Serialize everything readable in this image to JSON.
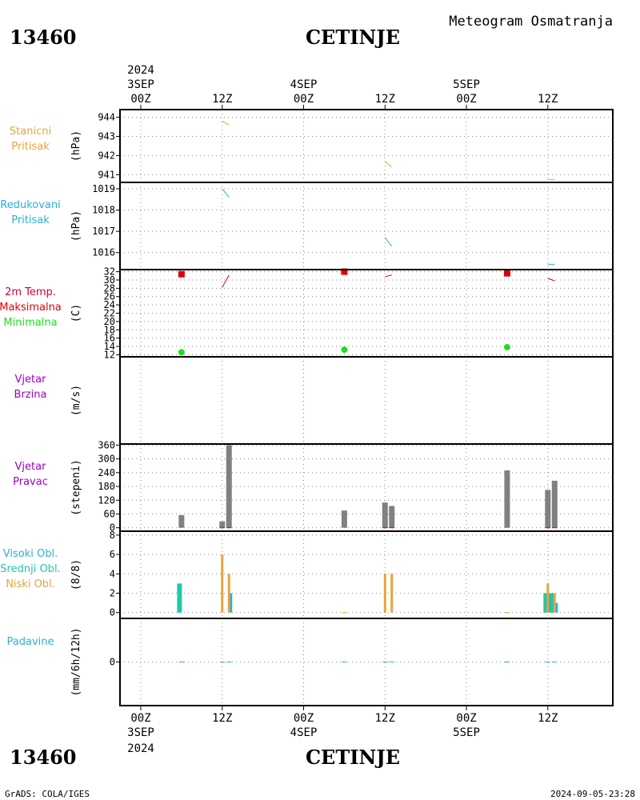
{
  "header": {
    "station_id": "13460",
    "station_name": "CETINJE",
    "chart_title": "Meteogram Osmatranja"
  },
  "time_axis": {
    "top_year": "2024",
    "bottom_year": "2024",
    "ticks": [
      {
        "hour": 0,
        "label": "00Z",
        "date": "3SEP"
      },
      {
        "hour": 12,
        "label": "12Z",
        "date": ""
      },
      {
        "hour": 24,
        "label": "00Z",
        "date": "4SEP"
      },
      {
        "hour": 36,
        "label": "12Z",
        "date": ""
      },
      {
        "hour": 48,
        "label": "00Z",
        "date": "5SEP"
      },
      {
        "hour": 60,
        "label": "12Z",
        "date": ""
      }
    ]
  },
  "footer": {
    "credit": "GrADS: COLA/IGES",
    "timestamp": "2024-09-05-23:28"
  },
  "colors": {
    "orange": "#e8a33c",
    "blue": "#2ab0d6",
    "red": "#e00000",
    "green": "#22dd22",
    "crimson": "#cc0044",
    "purple": "#a000c0",
    "teal": "#20c8a8",
    "gray": "#808080",
    "grid": "#888888"
  },
  "chart_data": [
    {
      "type": "line",
      "panel": "station_pressure",
      "labels": [
        "Stanicni",
        "Pritisak"
      ],
      "label_color": "orange",
      "unit": "(hPa)",
      "yticks": [
        941,
        942,
        943,
        944
      ],
      "ylim": [
        940.6,
        944.4
      ],
      "segments": [
        {
          "x": [
            12,
            13
          ],
          "y": [
            943.8,
            943.6
          ],
          "color": "orange"
        },
        {
          "x": [
            36,
            37
          ],
          "y": [
            941.7,
            941.4
          ],
          "color": "orange"
        },
        {
          "x": [
            60,
            61
          ],
          "y": [
            940.75,
            940.75
          ],
          "color": "orange"
        }
      ]
    },
    {
      "type": "line",
      "panel": "reduced_pressure",
      "labels": [
        "Redukovani",
        "Pritisak"
      ],
      "label_color": "blue",
      "unit": "(hPa)",
      "yticks": [
        1016,
        1017,
        1018,
        1019
      ],
      "ylim": [
        1015.2,
        1019.3
      ],
      "segments": [
        {
          "x": [
            12,
            13
          ],
          "y": [
            1019.0,
            1018.6
          ],
          "color": "blue"
        },
        {
          "x": [
            36,
            37
          ],
          "y": [
            1016.7,
            1016.3
          ],
          "color": "blue"
        },
        {
          "x": [
            60,
            61
          ],
          "y": [
            1015.45,
            1015.45
          ],
          "color": "blue"
        }
      ]
    },
    {
      "type": "line",
      "panel": "temperature",
      "labels": [
        "2m Temp.",
        "Maksimalna",
        "Minimalna"
      ],
      "label_colors": [
        "crimson",
        "red",
        "green"
      ],
      "unit": "(C)",
      "yticks": [
        12,
        14,
        16,
        18,
        20,
        22,
        24,
        26,
        28,
        30,
        32
      ],
      "ylim": [
        11.5,
        32.5
      ],
      "max_points": {
        "x": [
          6,
          30,
          54
        ],
        "y": [
          31.4,
          32.0,
          31.6
        ]
      },
      "min_points": {
        "x": [
          6,
          30,
          54
        ],
        "y": [
          12.6,
          13.2,
          13.8
        ]
      },
      "segments": [
        {
          "x": [
            12,
            13
          ],
          "y": [
            28.2,
            31.2
          ],
          "color": "crimson"
        },
        {
          "x": [
            36,
            37
          ],
          "y": [
            30.8,
            31.2
          ],
          "color": "crimson"
        },
        {
          "x": [
            60,
            61
          ],
          "y": [
            30.4,
            29.8
          ],
          "color": "crimson"
        }
      ]
    },
    {
      "type": "line",
      "panel": "wind_speed",
      "labels": [
        "Vjetar",
        "Brzina"
      ],
      "label_color": "purple",
      "unit": "(m/s)",
      "yticks": [],
      "ylim": [
        0,
        1
      ],
      "segments": []
    },
    {
      "type": "bar",
      "panel": "wind_direction",
      "labels": [
        "Vjetar",
        "Pravac"
      ],
      "label_color": "purple",
      "unit": "(stepeni)",
      "yticks": [
        0,
        60,
        120,
        180,
        240,
        300,
        360
      ],
      "ylim": [
        -15,
        365
      ],
      "bars": {
        "x": [
          6,
          12,
          13,
          30,
          36,
          37,
          54,
          60,
          61
        ],
        "values": [
          55,
          28,
          360,
          75,
          110,
          95,
          250,
          165,
          205
        ]
      }
    },
    {
      "type": "bar",
      "panel": "clouds",
      "labels": [
        "Visoki Obl.",
        "Srednji Obl.",
        "Niski Obl."
      ],
      "label_colors": [
        "blue",
        "teal",
        "orange"
      ],
      "unit": "(8/8)",
      "yticks": [
        0,
        2,
        4,
        6,
        8
      ],
      "ylim": [
        -0.6,
        8.4
      ],
      "series": [
        {
          "name": "Visoki Obl.",
          "color": "blue",
          "x": [
            13,
            60,
            61
          ],
          "values": [
            2,
            2,
            1
          ]
        },
        {
          "name": "Srednji Obl.",
          "color": "teal",
          "x": [
            6,
            60,
            61
          ],
          "values": [
            3,
            2,
            2
          ]
        },
        {
          "name": "Niski Obl.",
          "color": "orange",
          "x": [
            12,
            13,
            36,
            37,
            60,
            61
          ],
          "values": [
            6,
            4,
            4,
            4,
            3,
            2
          ]
        }
      ]
    },
    {
      "type": "line",
      "panel": "precipitation",
      "labels": [
        "Padavine"
      ],
      "label_color": "blue",
      "unit": "(mm/6h/12h)",
      "yticks": [
        0
      ],
      "ylim": [
        -5,
        5
      ],
      "zero_marks": {
        "x": [
          6,
          12,
          13,
          30,
          36,
          37,
          54,
          60,
          61
        ]
      }
    }
  ]
}
